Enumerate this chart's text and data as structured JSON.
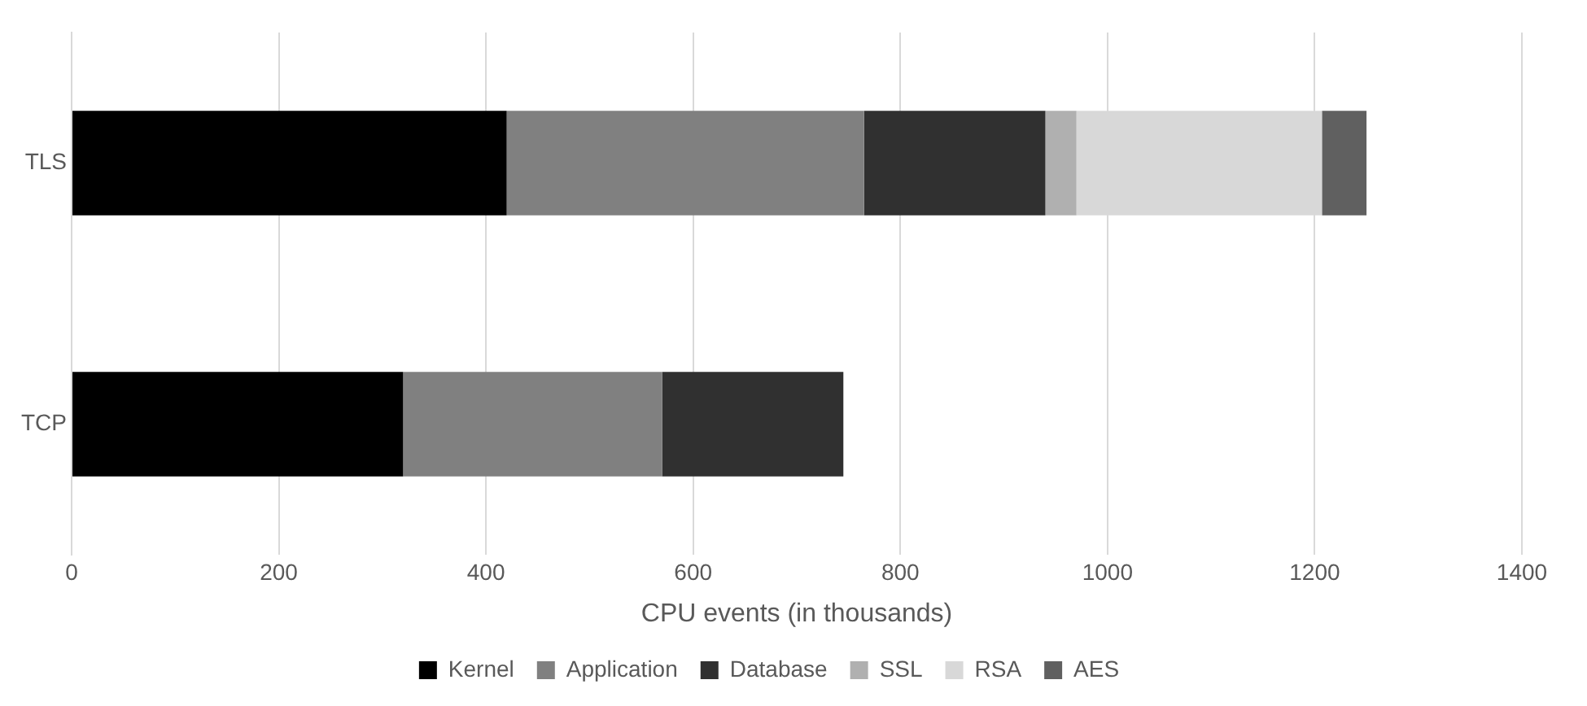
{
  "chart_data": {
    "type": "bar",
    "orientation": "horizontal",
    "stacked": true,
    "xlabel": "CPU events (in thousands)",
    "categories": [
      "TLS",
      "TCP"
    ],
    "series": [
      {
        "name": "Kernel",
        "color": "#000000",
        "values": [
          420,
          320
        ]
      },
      {
        "name": "Application",
        "color": "#808080",
        "values": [
          345,
          250
        ]
      },
      {
        "name": "Database",
        "color": "#303030",
        "values": [
          175,
          175
        ]
      },
      {
        "name": "SSL",
        "color": "#b0b0b0",
        "values": [
          30,
          null
        ]
      },
      {
        "name": "RSA",
        "color": "#d8d8d8",
        "values": [
          237,
          null
        ]
      },
      {
        "name": "AES",
        "color": "#606060",
        "values": [
          43,
          null
        ]
      }
    ],
    "xlim": [
      0,
      1400
    ],
    "xticks": [
      0,
      200,
      400,
      600,
      800,
      1000,
      1200,
      1400
    ],
    "grid": "x",
    "legend": "bottom"
  }
}
